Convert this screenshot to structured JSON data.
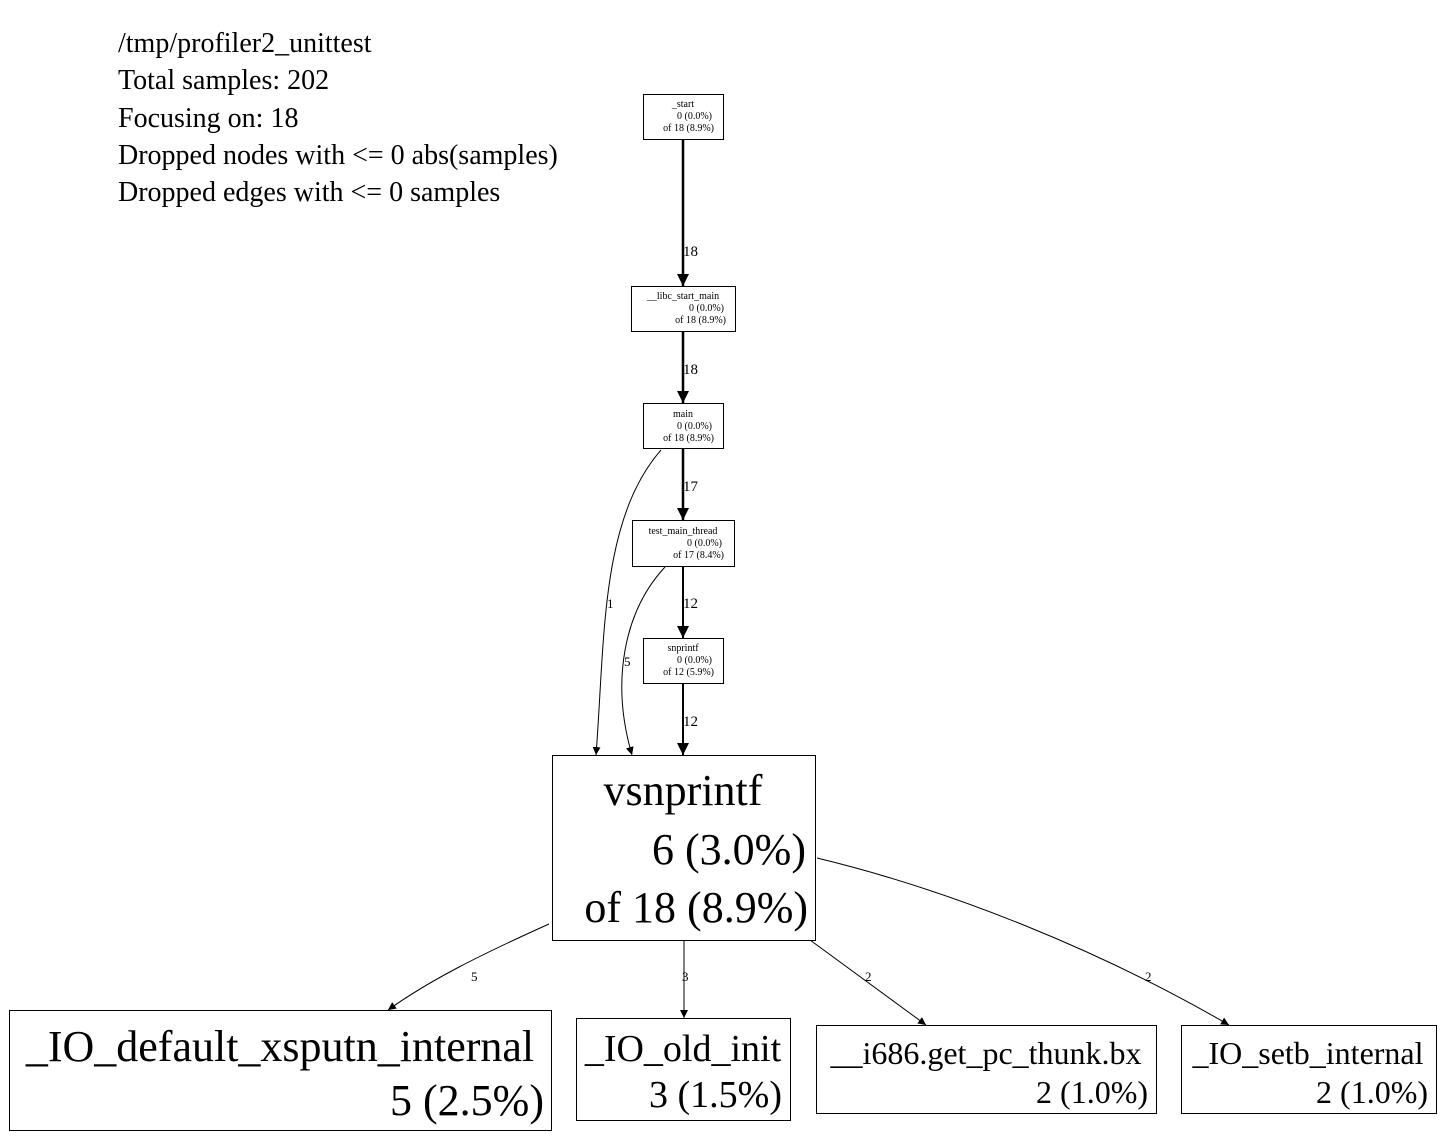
{
  "header": {
    "lines": [
      "/tmp/profiler2_unittest",
      "Total samples: 202",
      "Focusing on: 18",
      "Dropped nodes with <= 0 abs(samples)",
      "Dropped edges with <= 0 samples"
    ]
  },
  "nodes": {
    "start": {
      "name": "_start",
      "flat": "0 (0.0%)",
      "cum": "of 18 (8.9%)"
    },
    "libc_start_main": {
      "name": "__libc_start_main",
      "flat": "0 (0.0%)",
      "cum": "of 18 (8.9%)"
    },
    "main": {
      "name": "main",
      "flat": "0 (0.0%)",
      "cum": "of 18 (8.9%)"
    },
    "test_main_thread": {
      "name": "test_main_thread",
      "flat": "0 (0.0%)",
      "cum": "of 17 (8.4%)"
    },
    "snprintf": {
      "name": "snprintf",
      "flat": "0 (0.0%)",
      "cum": "of 12 (5.9%)"
    },
    "vsnprintf": {
      "name": "vsnprintf",
      "flat": "6 (3.0%)",
      "cum": "of 18 (8.9%)"
    },
    "io_default_xsputn_internal": {
      "name": "_IO_default_xsputn_internal",
      "flat": "5 (2.5%)"
    },
    "io_old_init": {
      "name": "_IO_old_init",
      "flat": "3 (1.5%)"
    },
    "get_pc_thunk_bx": {
      "name": "__i686.get_pc_thunk.bx",
      "flat": "2 (1.0%)"
    },
    "io_setb_internal": {
      "name": "_IO_setb_internal",
      "flat": "2 (1.0%)"
    }
  },
  "edges": {
    "start_to_libc": "18",
    "libc_to_main": "18",
    "main_to_test": "17",
    "main_to_vsnprintf": "1",
    "test_to_snprintf": "12",
    "test_to_vsnprintf": "5",
    "snprintf_to_vsnprintf": "12",
    "vsnprintf_to_xsputn": "5",
    "vsnprintf_to_old_init": "3",
    "vsnprintf_to_thunk": "2",
    "vsnprintf_to_setb": "2"
  }
}
